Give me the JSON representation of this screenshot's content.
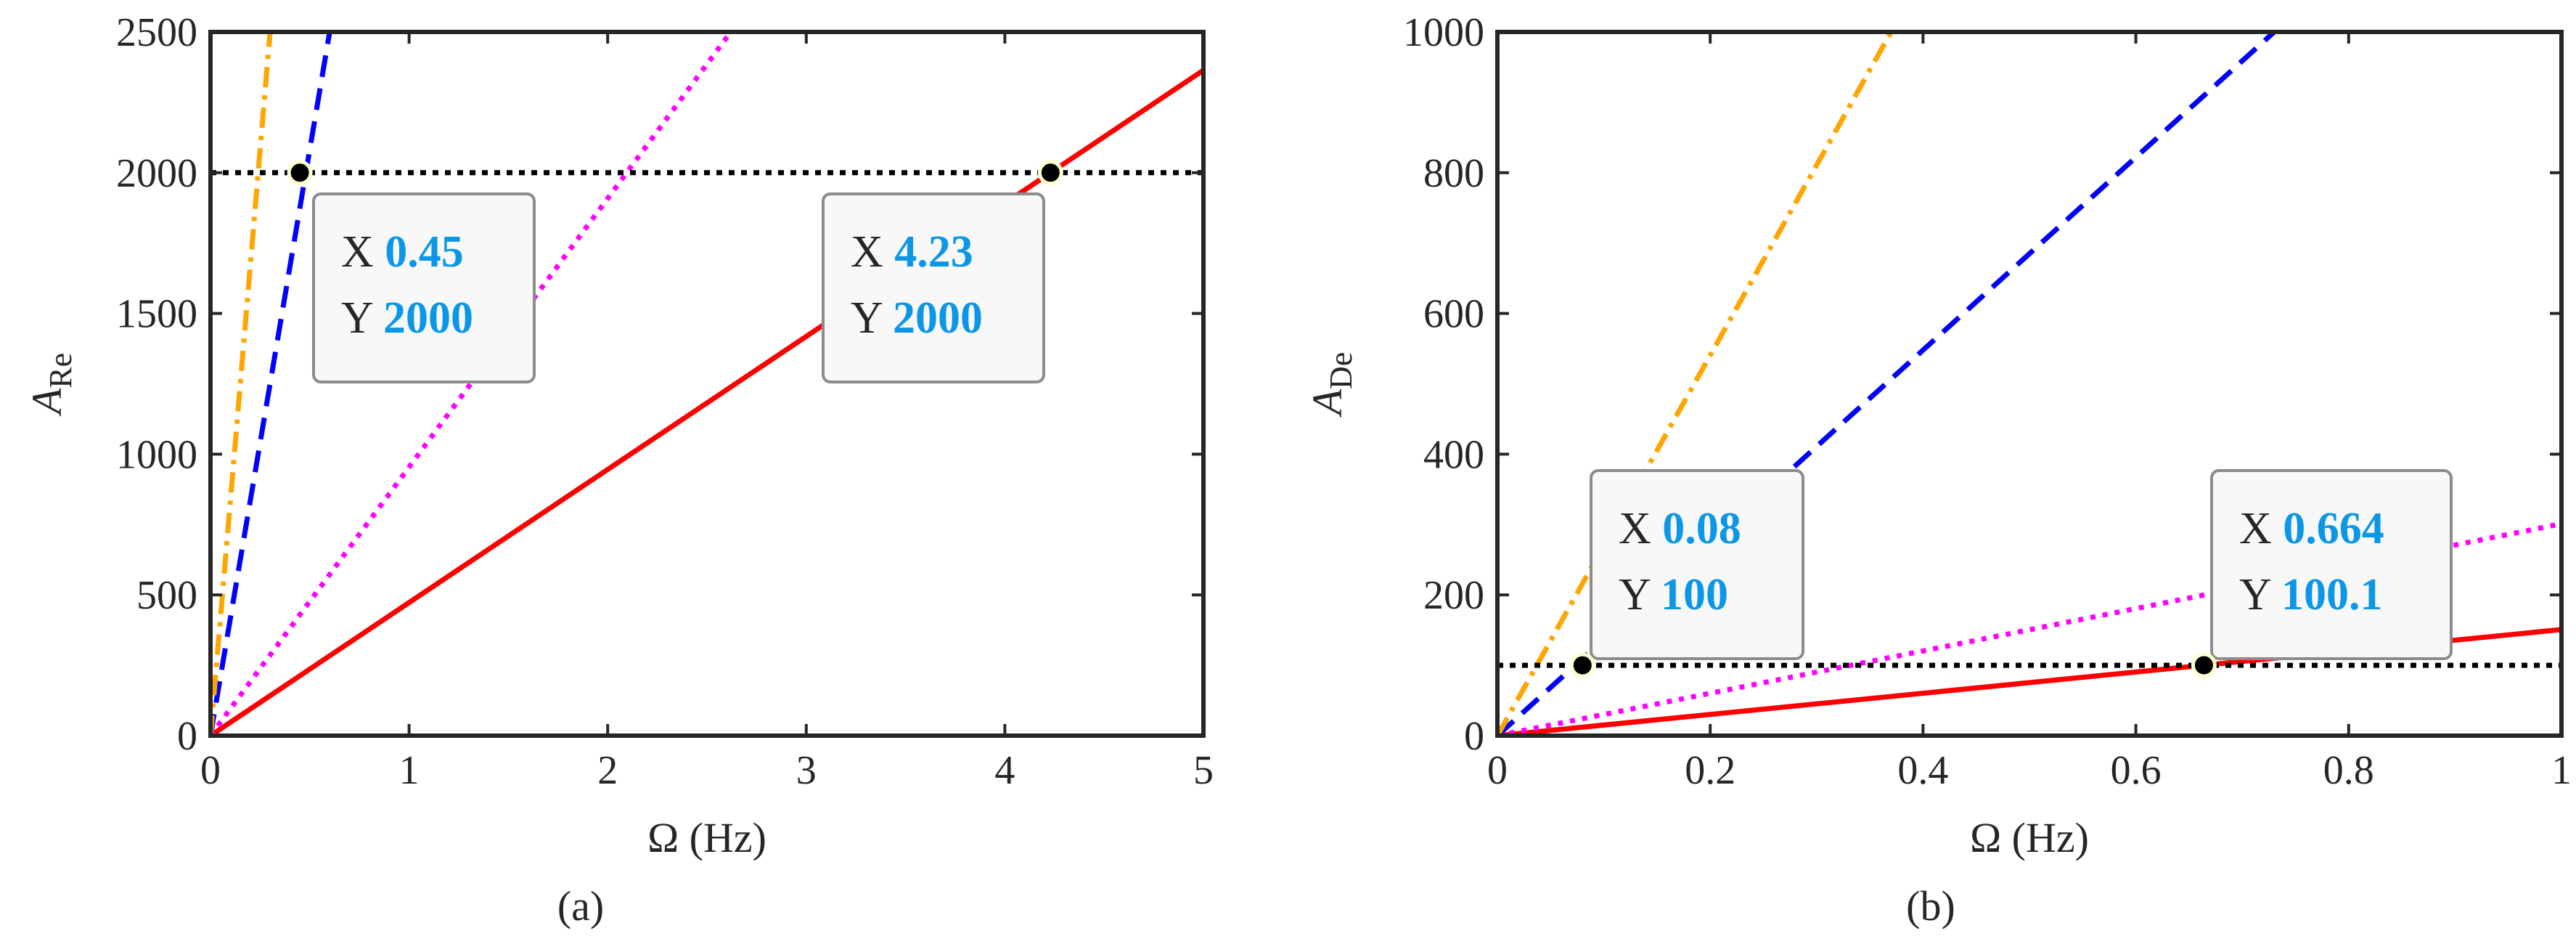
{
  "chart_data": [
    {
      "panel_label": "(a)",
      "type": "line",
      "xlabel": "Ω (Hz)",
      "ylabel": "A",
      "ylabel_sub": "Re",
      "xlim": [
        0,
        5
      ],
      "ylim": [
        0,
        2500
      ],
      "x_ticks": [
        0,
        1,
        2,
        3,
        4,
        5
      ],
      "y_ticks": [
        0,
        500,
        1000,
        1500,
        2000,
        2500
      ],
      "grid": false,
      "series": [
        {
          "color": "#ff0000",
          "style": "solid",
          "x": [
            0,
            5
          ],
          "values": [
            0,
            2364
          ]
        },
        {
          "color": "#ff00ff",
          "style": "dotted",
          "x": [
            0,
            2.62
          ],
          "values": [
            0,
            2500
          ]
        },
        {
          "color": "#0000ff",
          "style": "dashed",
          "x": [
            0,
            0.6
          ],
          "values": [
            0,
            2500
          ]
        },
        {
          "color": "#ffa500",
          "style": "dashdot",
          "x": [
            0,
            0.3
          ],
          "values": [
            0,
            2500
          ]
        }
      ],
      "reference_line": {
        "y": 2000,
        "color": "#000000",
        "style": "dotted"
      },
      "datatips": [
        {
          "x": 0.45,
          "y": 2000,
          "x_key": "X",
          "x_text": "0.45",
          "y_key": "Y",
          "y_text": "2000"
        },
        {
          "x": 4.23,
          "y": 2000,
          "x_key": "X",
          "x_text": "4.23",
          "y_key": "Y",
          "y_text": "2000"
        }
      ]
    },
    {
      "panel_label": "(b)",
      "type": "line",
      "xlabel": "Ω (Hz)",
      "ylabel": "A",
      "ylabel_sub": "De",
      "xlim": [
        0,
        1
      ],
      "ylim": [
        0,
        1000
      ],
      "x_ticks": [
        0,
        0.2,
        0.4,
        0.6,
        0.8,
        1
      ],
      "y_ticks": [
        0,
        200,
        400,
        600,
        800,
        1000
      ],
      "grid": false,
      "series": [
        {
          "color": "#ff0000",
          "style": "solid",
          "x": [
            0,
            1
          ],
          "values": [
            0,
            150.8
          ]
        },
        {
          "color": "#ff00ff",
          "style": "dotted",
          "x": [
            0,
            1
          ],
          "values": [
            0,
            301
          ]
        },
        {
          "color": "#0000ff",
          "style": "dashed",
          "x": [
            0,
            0.73
          ],
          "values": [
            0,
            1000
          ]
        },
        {
          "color": "#ffa500",
          "style": "dashdot",
          "x": [
            0,
            0.37
          ],
          "values": [
            0,
            1000
          ]
        }
      ],
      "reference_line": {
        "y": 100,
        "color": "#000000",
        "style": "dotted"
      },
      "datatips": [
        {
          "x": 0.08,
          "y": 100,
          "x_key": "X",
          "x_text": "0.08",
          "y_key": "Y",
          "y_text": "100"
        },
        {
          "x": 0.664,
          "y": 100.1,
          "x_key": "X",
          "x_text": "0.664",
          "y_key": "Y",
          "y_text": "100.1"
        }
      ]
    }
  ]
}
